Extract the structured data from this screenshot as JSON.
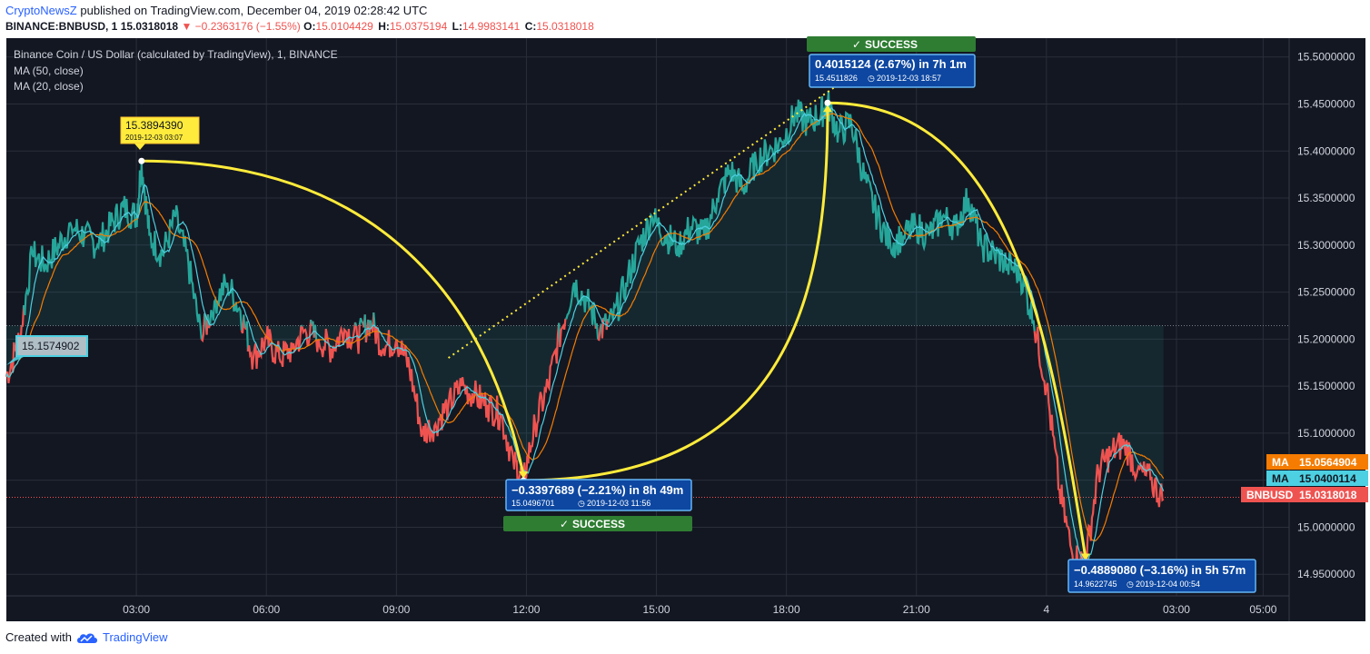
{
  "header": {
    "author": "CryptoNewsZ",
    "published_text": "published on TradingView.com, December 04, 2019 02:28:42 UTC",
    "symbol": "BINANCE:BNBUSD, 1",
    "last": "15.0318018",
    "change_arrow": "▼",
    "change": "−0.2363176 (−1.55%)",
    "o_label": "O:",
    "o_value": "15.0104429",
    "h_label": "H:",
    "h_value": "15.0375194",
    "l_label": "L:",
    "l_value": "14.9983141",
    "c_label": "C:",
    "c_value": "15.0318018"
  },
  "legend": {
    "title": "Binance Coin / US Dollar (calculated by TradingView), 1, BINANCE",
    "ma50": "MA (50, close)",
    "ma20": "MA (20, close)"
  },
  "footer": {
    "created_with": "Created with",
    "tradingview": "TradingView",
    "logo_icon": "tradingview-cloud-icon"
  },
  "colors": {
    "background": "#131722",
    "up": "#26a69a",
    "down": "#ef5350",
    "ma50": "#f57c00",
    "ma20": "#4dd0e1",
    "annotation": "#ffeb3b",
    "success": "#2e7d32",
    "price_box": "#0d47a1"
  },
  "price_axis": {
    "ticks": [
      "15.5000000",
      "15.4500000",
      "15.4000000",
      "15.3500000",
      "15.3000000",
      "15.2500000",
      "15.2000000",
      "15.1500000",
      "15.1000000",
      "15.0500000",
      "15.0000000",
      "14.9500000"
    ],
    "ma_orange_tag": {
      "label": "MA",
      "value": "15.0564904"
    },
    "ma_cyan_tag": {
      "label": "MA",
      "value": "15.0400114"
    },
    "price_tag": {
      "label": "BNBUSD",
      "value": "15.0318018"
    }
  },
  "time_axis": {
    "ticks": [
      "03:00",
      "06:00",
      "09:00",
      "12:00",
      "15:00",
      "18:00",
      "21:00",
      "4",
      "03:00",
      "05:00"
    ]
  },
  "annotations": {
    "start_price": "15.1574902",
    "peak": {
      "price": "15.3894390",
      "time": "2019-12-03 03:07"
    },
    "drop1": {
      "change": "−0.3397689 (−2.21%) in 8h 49m",
      "price": "15.0496701",
      "time": "2019-12-03  11:56",
      "status": "SUCCESS"
    },
    "rise": {
      "change": "0.4015124 (2.67%) in 7h 1m",
      "price": "15.4511826",
      "time": "2019-12-03  18:57",
      "status": "SUCCESS"
    },
    "drop2": {
      "change": "−0.4889080 (−3.16%) in 5h 57m",
      "price": "14.9622745",
      "time": "2019-12-04  00:54"
    }
  },
  "chart_data": {
    "type": "line",
    "title": "Binance Coin / US Dollar (calculated by TradingView), 1, BINANCE",
    "ylim": [
      14.9,
      15.52
    ],
    "x_unit": "hours since 2019-12-03 00:00 UTC",
    "xlim": [
      0,
      29.6
    ],
    "series": [
      {
        "name": "BNBUSD",
        "x": [
          0.0,
          0.3,
          0.6,
          0.9,
          1.2,
          1.5,
          1.8,
          2.1,
          2.4,
          2.7,
          3.0,
          3.12,
          3.3,
          3.6,
          3.9,
          4.2,
          4.5,
          4.8,
          5.1,
          5.4,
          5.7,
          6.0,
          6.3,
          6.6,
          6.9,
          7.2,
          7.5,
          7.8,
          8.1,
          8.4,
          8.7,
          9.0,
          9.3,
          9.6,
          9.9,
          10.2,
          10.5,
          10.8,
          11.1,
          11.4,
          11.7,
          11.93,
          12.2,
          12.5,
          12.8,
          13.1,
          13.4,
          13.7,
          14.0,
          14.3,
          14.6,
          14.9,
          15.2,
          15.5,
          15.8,
          16.1,
          16.4,
          16.7,
          17.0,
          17.3,
          17.6,
          17.9,
          18.2,
          18.5,
          18.8,
          18.95,
          19.2,
          19.5,
          19.8,
          20.1,
          20.4,
          20.7,
          21.0,
          21.3,
          21.6,
          21.9,
          22.2,
          22.5,
          22.8,
          23.1,
          23.4,
          23.7,
          24.0,
          24.3,
          24.6,
          24.9,
          25.2,
          25.5,
          25.8,
          26.1,
          26.4,
          26.7
        ],
        "y": [
          15.16,
          15.2,
          15.29,
          15.28,
          15.3,
          15.32,
          15.31,
          15.3,
          15.32,
          15.34,
          15.33,
          15.389,
          15.31,
          15.29,
          15.33,
          15.28,
          15.2,
          15.24,
          15.26,
          15.23,
          15.18,
          15.2,
          15.18,
          15.19,
          15.21,
          15.2,
          15.19,
          15.21,
          15.2,
          15.22,
          15.19,
          15.2,
          15.17,
          15.1,
          15.11,
          15.13,
          15.15,
          15.14,
          15.13,
          15.12,
          15.07,
          15.05,
          15.11,
          15.15,
          15.21,
          15.26,
          15.24,
          15.21,
          15.22,
          15.26,
          15.3,
          15.33,
          15.31,
          15.3,
          15.32,
          15.31,
          15.35,
          15.38,
          15.36,
          15.39,
          15.4,
          15.41,
          15.44,
          15.43,
          15.44,
          15.451,
          15.42,
          15.43,
          15.37,
          15.33,
          15.3,
          15.31,
          15.32,
          15.31,
          15.33,
          15.32,
          15.35,
          15.3,
          15.29,
          15.28,
          15.27,
          15.22,
          15.15,
          15.04,
          14.97,
          14.962,
          15.06,
          15.08,
          15.09,
          15.06,
          15.05,
          15.03
        ]
      },
      {
        "name": "MA (50, close)",
        "values": []
      },
      {
        "name": "MA (20, close)",
        "values": []
      }
    ]
  }
}
